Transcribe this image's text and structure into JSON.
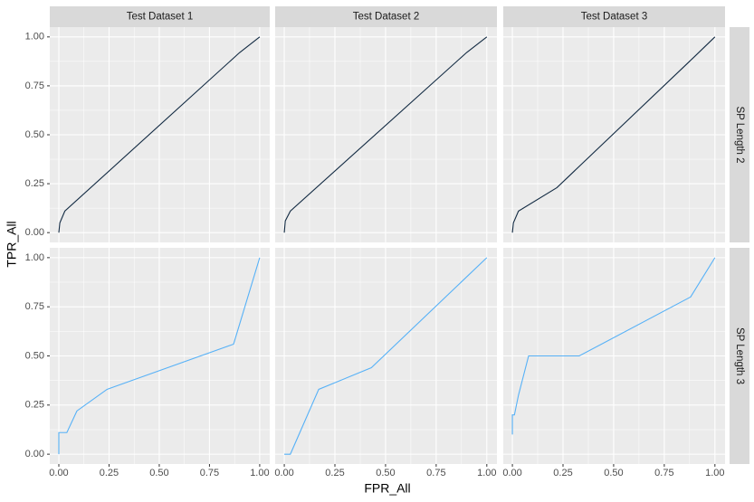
{
  "chart_data": {
    "type": "line",
    "x_label": "FPR_All",
    "y_label": "TPR_All",
    "columns": [
      "Test Dataset 1",
      "Test Dataset 2",
      "Test Dataset 3"
    ],
    "xlim": [
      -0.045,
      1.05
    ],
    "ylim": [
      -0.05,
      1.05
    ],
    "xticks": [
      {
        "value": 0,
        "label": "0.00"
      },
      {
        "value": 0.25,
        "label": "0.25"
      },
      {
        "value": 0.5,
        "label": "0.50"
      },
      {
        "value": 0.75,
        "label": "0.75"
      },
      {
        "value": 1,
        "label": "1.00"
      }
    ],
    "yticks": [
      {
        "value": 0,
        "label": "0.00"
      },
      {
        "value": 0.25,
        "label": "0.25"
      },
      {
        "value": 0.5,
        "label": "0.50"
      },
      {
        "value": 0.75,
        "label": "0.75"
      },
      {
        "value": 1,
        "label": "1.00"
      }
    ],
    "grid": true,
    "rows": [
      {
        "label": "SP Length 2",
        "color": "#132B43",
        "panels": [
          {
            "x": [
              0,
              0.005,
              0.03,
              0.9,
              1
            ],
            "values": [
              0,
              0.05,
              0.11,
              0.92,
              1
            ]
          },
          {
            "x": [
              0,
              0.005,
              0.03,
              0.9,
              1
            ],
            "values": [
              0,
              0.06,
              0.11,
              0.92,
              1
            ]
          },
          {
            "x": [
              0,
              0.005,
              0.03,
              0.22,
              0.9,
              1
            ],
            "values": [
              0,
              0.05,
              0.11,
              0.23,
              0.9,
              1
            ]
          }
        ]
      },
      {
        "label": "SP Length 3",
        "color": "#56B1F7",
        "panels": [
          {
            "x": [
              0,
              0,
              0.04,
              0.09,
              0.24,
              0.87,
              1
            ],
            "values": [
              0,
              0.11,
              0.11,
              0.22,
              0.33,
              0.56,
              1
            ]
          },
          {
            "x": [
              0,
              0.03,
              0.17,
              0.43,
              1
            ],
            "values": [
              0,
              0,
              0.33,
              0.44,
              1
            ]
          },
          {
            "x": [
              0,
              0,
              0.01,
              0.03,
              0.08,
              0.33,
              0.88,
              1
            ],
            "values": [
              0.1,
              0.2,
              0.2,
              0.3,
              0.5,
              0.5,
              0.8,
              1
            ]
          }
        ]
      }
    ]
  }
}
